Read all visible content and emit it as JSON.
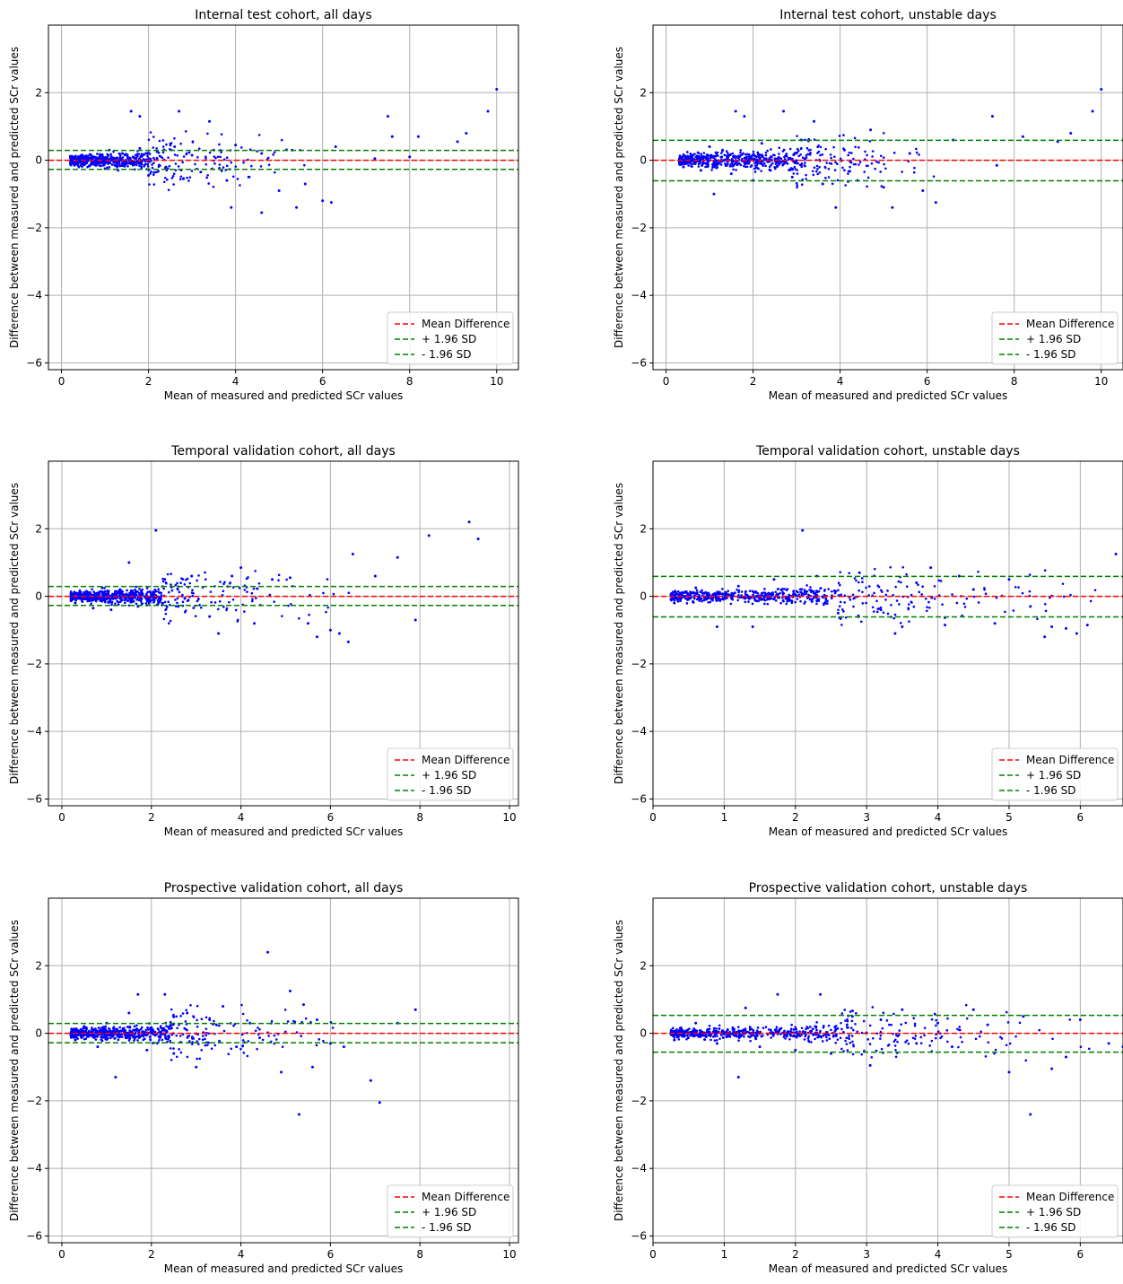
{
  "figure": {
    "mean_line_color": "#ff0000",
    "sd_line_color": "#008000",
    "point_color": "#0000ff",
    "legend_entries": [
      "Mean Difference",
      "+ 1.96 SD",
      "- 1.96 SD"
    ]
  },
  "chart_data": [
    {
      "type": "scatter",
      "title": "Internal test cohort, all days",
      "xlabel": "Mean of measured and predicted SCr values",
      "ylabel": "Difference between measured and predicted SCr values",
      "xlim": [
        -0.3,
        10.5
      ],
      "ylim": [
        -6.2,
        4.0
      ],
      "xticks": [
        0,
        2,
        4,
        6,
        8,
        10
      ],
      "yticks": [
        -6,
        -4,
        -2,
        0,
        2
      ],
      "grid": true,
      "legend_position": "lower right",
      "mean_difference": 0.0,
      "upper_loa": 0.29,
      "lower_loa": -0.27,
      "points": [
        [
          0.3,
          -0.15
        ],
        [
          0.5,
          0.08
        ],
        [
          0.7,
          -0.12
        ],
        [
          0.9,
          0.15
        ],
        [
          1.0,
          -0.25
        ],
        [
          1.1,
          0.3
        ],
        [
          1.3,
          -0.3
        ],
        [
          1.4,
          0.2
        ],
        [
          1.6,
          -0.1
        ],
        [
          1.8,
          0.35
        ],
        [
          2.0,
          -0.45
        ],
        [
          2.2,
          0.25
        ],
        [
          2.4,
          -0.2
        ],
        [
          2.6,
          0.4
        ],
        [
          2.8,
          -0.55
        ],
        [
          3.0,
          0.15
        ],
        [
          3.2,
          -0.35
        ],
        [
          3.5,
          0.3
        ],
        [
          3.8,
          -0.6
        ],
        [
          4.0,
          0.45
        ],
        [
          4.3,
          -0.5
        ],
        [
          4.6,
          0.2
        ],
        [
          5.0,
          -0.9
        ],
        [
          5.3,
          0.3
        ],
        [
          5.6,
          -0.7
        ],
        [
          6.0,
          -1.2
        ],
        [
          6.3,
          0.4
        ],
        [
          1.6,
          1.45
        ],
        [
          2.7,
          1.45
        ],
        [
          1.8,
          1.3
        ],
        [
          3.4,
          1.15
        ],
        [
          3.9,
          -1.4
        ],
        [
          4.6,
          -1.55
        ],
        [
          5.4,
          -1.4
        ],
        [
          6.2,
          -1.25
        ],
        [
          7.5,
          1.3
        ],
        [
          7.6,
          0.7
        ],
        [
          8.2,
          0.7
        ],
        [
          9.1,
          0.55
        ],
        [
          9.3,
          0.8
        ],
        [
          9.8,
          1.45
        ],
        [
          10.0,
          2.1
        ],
        [
          7.2,
          0.05
        ],
        [
          8.0,
          0.1
        ]
      ],
      "dense_band": {
        "x_range": [
          0.2,
          2.0
        ],
        "y_spread": 0.3
      }
    },
    {
      "type": "scatter",
      "title": "Internal test cohort, unstable days",
      "xlabel": "Mean of measured and predicted SCr values",
      "ylabel": "Difference between measured and predicted SCr values",
      "xlim": [
        -0.3,
        10.5
      ],
      "ylim": [
        -6.2,
        4.0
      ],
      "xticks": [
        0,
        2,
        4,
        6,
        8,
        10
      ],
      "yticks": [
        -6,
        -4,
        -2,
        0,
        2
      ],
      "grid": true,
      "legend_position": "lower right",
      "mean_difference": 0.0,
      "upper_loa": 0.59,
      "lower_loa": -0.61,
      "points": [
        [
          0.4,
          -0.2
        ],
        [
          0.6,
          0.15
        ],
        [
          0.8,
          -0.3
        ],
        [
          1.0,
          0.4
        ],
        [
          1.1,
          -1.0
        ],
        [
          1.3,
          0.3
        ],
        [
          1.5,
          -0.4
        ],
        [
          1.6,
          1.45
        ],
        [
          1.8,
          1.3
        ],
        [
          2.0,
          -0.6
        ],
        [
          2.2,
          0.5
        ],
        [
          2.4,
          -0.3
        ],
        [
          2.7,
          1.45
        ],
        [
          2.9,
          -0.5
        ],
        [
          3.1,
          0.6
        ],
        [
          3.4,
          1.15
        ],
        [
          3.6,
          -0.7
        ],
        [
          3.9,
          -1.4
        ],
        [
          4.1,
          0.3
        ],
        [
          4.4,
          -0.6
        ],
        [
          4.7,
          0.9
        ],
        [
          5.0,
          -0.8
        ],
        [
          5.2,
          -1.4
        ],
        [
          5.6,
          0.2
        ],
        [
          5.9,
          -0.9
        ],
        [
          6.2,
          -1.25
        ],
        [
          6.6,
          0.6
        ],
        [
          7.5,
          1.3
        ],
        [
          7.6,
          -0.15
        ],
        [
          8.2,
          0.7
        ],
        [
          9.0,
          0.55
        ],
        [
          9.3,
          0.8
        ],
        [
          9.8,
          1.45
        ],
        [
          10.0,
          2.1
        ]
      ],
      "dense_band": {
        "x_range": [
          0.3,
          3.0
        ],
        "y_spread": 0.35
      }
    },
    {
      "type": "scatter",
      "title": "Temporal validation cohort, all days",
      "xlabel": "Mean of measured and predicted SCr values",
      "ylabel": "Difference between measured and predicted SCr values",
      "xlim": [
        -0.3,
        10.2
      ],
      "ylim": [
        -6.2,
        4.0
      ],
      "xticks": [
        0,
        2,
        4,
        6,
        8,
        10
      ],
      "yticks": [
        -6,
        -4,
        -2,
        0,
        2
      ],
      "grid": true,
      "legend_position": "lower right",
      "mean_difference": 0.0,
      "upper_loa": 0.29,
      "lower_loa": -0.27,
      "points": [
        [
          0.3,
          -0.2
        ],
        [
          0.5,
          0.1
        ],
        [
          0.7,
          -0.35
        ],
        [
          0.9,
          0.25
        ],
        [
          1.1,
          -0.4
        ],
        [
          1.3,
          0.2
        ],
        [
          1.5,
          1.0
        ],
        [
          1.7,
          -0.3
        ],
        [
          2.1,
          1.95
        ],
        [
          2.3,
          0.5
        ],
        [
          2.6,
          -0.3
        ],
        [
          2.9,
          0.6
        ],
        [
          3.3,
          -0.6
        ],
        [
          3.5,
          -1.1
        ],
        [
          3.8,
          0.6
        ],
        [
          4.0,
          0.85
        ],
        [
          4.3,
          -0.8
        ],
        [
          4.7,
          0.5
        ],
        [
          5.1,
          0.55
        ],
        [
          5.5,
          -0.8
        ],
        [
          5.7,
          -1.2
        ],
        [
          6.0,
          -1.0
        ],
        [
          6.2,
          -1.1
        ],
        [
          6.4,
          -1.35
        ],
        [
          6.5,
          1.25
        ],
        [
          7.0,
          0.6
        ],
        [
          7.5,
          1.15
        ],
        [
          7.9,
          -0.7
        ],
        [
          8.2,
          1.8
        ],
        [
          9.1,
          2.2
        ],
        [
          9.3,
          1.7
        ]
      ],
      "dense_band": {
        "x_range": [
          0.2,
          2.2
        ],
        "y_spread": 0.3
      }
    },
    {
      "type": "scatter",
      "title": "Temporal validation cohort, unstable days",
      "xlabel": "Mean of measured and predicted SCr values",
      "ylabel": "Difference between measured and predicted SCr values",
      "xlim": [
        0,
        6.6
      ],
      "ylim": [
        -6.2,
        4.0
      ],
      "xticks": [
        0,
        1,
        2,
        3,
        4,
        5,
        6
      ],
      "yticks": [
        -6,
        -4,
        -2,
        0,
        2
      ],
      "grid": true,
      "legend_position": "lower right",
      "mean_difference": 0.0,
      "upper_loa": 0.59,
      "lower_loa": -0.61,
      "points": [
        [
          0.3,
          -0.2
        ],
        [
          0.6,
          0.25
        ],
        [
          0.9,
          -0.9
        ],
        [
          1.2,
          0.3
        ],
        [
          1.4,
          -0.9
        ],
        [
          1.7,
          0.5
        ],
        [
          2.1,
          1.95
        ],
        [
          2.3,
          0.6
        ],
        [
          2.6,
          -0.5
        ],
        [
          2.9,
          0.7
        ],
        [
          3.2,
          -0.4
        ],
        [
          3.4,
          -1.1
        ],
        [
          3.5,
          -0.9
        ],
        [
          3.7,
          0.4
        ],
        [
          3.9,
          0.85
        ],
        [
          4.1,
          -0.85
        ],
        [
          4.3,
          0.6
        ],
        [
          4.5,
          0.2
        ],
        [
          4.8,
          -0.8
        ],
        [
          5.0,
          0.5
        ],
        [
          5.3,
          -0.3
        ],
        [
          5.5,
          -1.2
        ],
        [
          5.6,
          -0.9
        ],
        [
          5.8,
          -0.95
        ],
        [
          5.95,
          -1.1
        ],
        [
          6.1,
          -0.85
        ],
        [
          6.5,
          1.25
        ]
      ],
      "dense_band": {
        "x_range": [
          0.25,
          2.6
        ],
        "y_spread": 0.3
      }
    },
    {
      "type": "scatter",
      "title": "Prospective validation cohort, all days",
      "xlabel": "Mean of measured and predicted SCr values",
      "ylabel": "Difference between measured and predicted SCr values",
      "xlim": [
        -0.3,
        10.2
      ],
      "ylim": [
        -6.2,
        4.0
      ],
      "xticks": [
        0,
        2,
        4,
        6,
        8,
        10
      ],
      "yticks": [
        -6,
        -4,
        -2,
        0,
        2
      ],
      "grid": true,
      "legend_position": "lower right",
      "mean_difference": 0.0,
      "upper_loa": 0.29,
      "lower_loa": -0.28,
      "points": [
        [
          0.3,
          -0.2
        ],
        [
          0.5,
          0.2
        ],
        [
          0.8,
          -0.4
        ],
        [
          1.0,
          0.3
        ],
        [
          1.2,
          -1.3
        ],
        [
          1.5,
          0.6
        ],
        [
          1.7,
          1.15
        ],
        [
          1.9,
          -0.5
        ],
        [
          2.3,
          1.15
        ],
        [
          2.5,
          -0.6
        ],
        [
          2.8,
          0.6
        ],
        [
          3.0,
          -1.0
        ],
        [
          3.3,
          0.4
        ],
        [
          3.6,
          0.8
        ],
        [
          3.9,
          -0.4
        ],
        [
          4.2,
          0.3
        ],
        [
          4.6,
          2.4
        ],
        [
          4.9,
          -1.15
        ],
        [
          5.1,
          1.25
        ],
        [
          5.3,
          -2.4
        ],
        [
          5.4,
          0.85
        ],
        [
          5.6,
          -1.0
        ],
        [
          5.7,
          0.4
        ],
        [
          6.0,
          -0.3
        ],
        [
          6.3,
          -0.4
        ],
        [
          6.9,
          -1.4
        ],
        [
          7.1,
          -2.05
        ],
        [
          7.5,
          0.3
        ],
        [
          7.9,
          0.7
        ]
      ],
      "dense_band": {
        "x_range": [
          0.2,
          2.4
        ],
        "y_spread": 0.3
      }
    },
    {
      "type": "scatter",
      "title": "Prospective validation cohort, unstable days",
      "xlabel": "Mean of measured and predicted SCr values",
      "ylabel": "Difference between measured and predicted SCr values",
      "xlim": [
        0,
        6.6
      ],
      "ylim": [
        -6.2,
        4.0
      ],
      "xticks": [
        0,
        1,
        2,
        3,
        4,
        5,
        6
      ],
      "yticks": [
        -6,
        -4,
        -2,
        0,
        2
      ],
      "grid": true,
      "legend_position": "lower right",
      "mean_difference": 0.0,
      "upper_loa": 0.53,
      "lower_loa": -0.56,
      "points": [
        [
          0.3,
          -0.2
        ],
        [
          0.6,
          0.3
        ],
        [
          0.9,
          -0.3
        ],
        [
          1.2,
          -1.3
        ],
        [
          1.3,
          0.75
        ],
        [
          1.5,
          -0.4
        ],
        [
          1.75,
          1.15
        ],
        [
          2.0,
          -0.5
        ],
        [
          2.35,
          1.15
        ],
        [
          2.5,
          -0.6
        ],
        [
          2.8,
          0.5
        ],
        [
          3.05,
          -0.95
        ],
        [
          3.2,
          0.4
        ],
        [
          3.5,
          0.7
        ],
        [
          3.7,
          -0.3
        ],
        [
          4.0,
          0.3
        ],
        [
          4.2,
          -0.4
        ],
        [
          4.5,
          0.7
        ],
        [
          4.7,
          0.25
        ],
        [
          5.0,
          -1.15
        ],
        [
          5.2,
          0.5
        ],
        [
          5.3,
          -2.4
        ],
        [
          5.6,
          -1.05
        ],
        [
          5.8,
          -0.7
        ],
        [
          6.0,
          0.4
        ],
        [
          6.4,
          -0.3
        ],
        [
          6.6,
          -0.4
        ]
      ],
      "dense_band": {
        "x_range": [
          0.25,
          2.6
        ],
        "y_spread": 0.3
      }
    }
  ]
}
